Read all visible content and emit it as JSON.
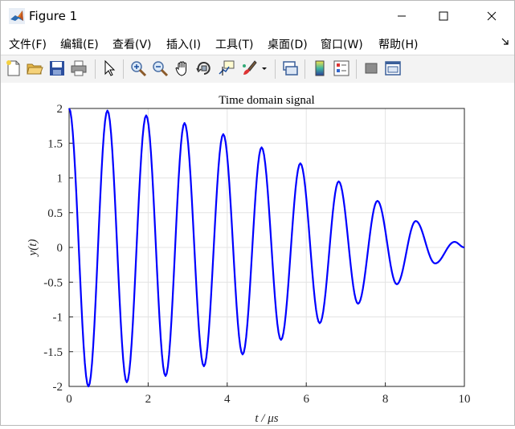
{
  "window": {
    "title": "Figure 1",
    "controls": {
      "minimize": "minimize",
      "maximize": "maximize",
      "close": "close"
    }
  },
  "menu": [
    {
      "label": "文件(F)"
    },
    {
      "label": "编辑(E)"
    },
    {
      "label": "查看(V)"
    },
    {
      "label": "插入(I)"
    },
    {
      "label": "工具(T)"
    },
    {
      "label": "桌面(D)"
    },
    {
      "label": "窗口(W)"
    },
    {
      "label": "帮助(H)"
    }
  ],
  "toolbar": [
    {
      "icon": "new-figure-icon"
    },
    {
      "icon": "open-file-icon"
    },
    {
      "icon": "save-icon"
    },
    {
      "icon": "print-icon"
    },
    {
      "icon": "pointer-icon"
    },
    {
      "icon": "zoom-in-icon"
    },
    {
      "icon": "zoom-out-icon"
    },
    {
      "icon": "pan-hand-icon"
    },
    {
      "icon": "rotate-3d-icon"
    },
    {
      "icon": "data-cursor-icon"
    },
    {
      "icon": "brush-icon"
    },
    {
      "icon": "link-plot-icon"
    },
    {
      "icon": "colorbar-icon"
    },
    {
      "icon": "legend-icon"
    },
    {
      "icon": "hide-plot-tools-icon"
    },
    {
      "icon": "show-plot-tools-icon"
    }
  ],
  "chart_data": {
    "type": "line",
    "title": "Time domain signal",
    "xlabel": "t / μs",
    "ylabel": "y(t)",
    "xlim": [
      0,
      10
    ],
    "ylim": [
      -2,
      2
    ],
    "xticks": [
      "0",
      "2",
      "4",
      "6",
      "8",
      "10"
    ],
    "yticks": [
      "-2",
      "-1.5",
      "-1",
      "-0.5",
      "0",
      "0.5",
      "1",
      "1.5",
      "2"
    ],
    "grid": true,
    "series": [
      {
        "color": "#0000ff",
        "x": [
          0,
          0.49,
          0.97,
          1.46,
          1.95,
          2.44,
          2.92,
          3.41,
          3.9,
          4.39,
          4.87,
          5.36,
          5.85,
          6.34,
          6.82,
          7.31,
          7.8,
          8.29,
          8.77,
          9.26,
          9.75,
          10.0
        ],
        "y": [
          2.0,
          -2.0,
          1.97,
          -1.94,
          1.9,
          -1.85,
          1.79,
          -1.71,
          1.63,
          -1.54,
          1.44,
          -1.33,
          1.21,
          -1.09,
          0.95,
          -0.81,
          0.67,
          -0.53,
          0.38,
          -0.23,
          0.08,
          0.0
        ]
      }
    ]
  }
}
